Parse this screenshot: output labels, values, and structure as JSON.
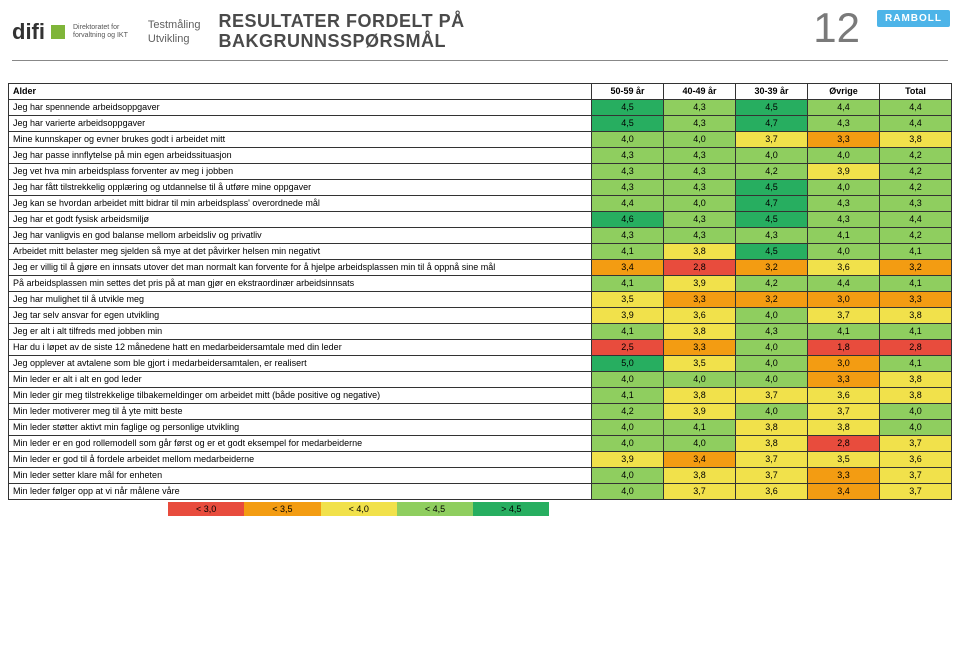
{
  "header": {
    "difi_text": "difi",
    "difi_sub1": "Direktoratet for",
    "difi_sub2": "forvaltning og IKT",
    "test1": "Testmåling",
    "test2": "Utvikling",
    "title1": "RESULTATER FORDELT PÅ",
    "title2": "BAKGRUNNSSPØRSMÅL",
    "pagenum": "12",
    "ramboll": "RAMBOLL"
  },
  "columns": [
    "Alder",
    "50-59 år",
    "40-49 år",
    "30-39 år",
    "Øvrige",
    "Total"
  ],
  "colors": {
    "red": "#e84c3d",
    "orange": "#f39c12",
    "yellow": "#f1e14b",
    "lightgreen": "#8fce5f",
    "green": "#27ae60"
  },
  "rows": [
    {
      "label": "Jeg har spennende arbeidsoppgaver",
      "vals": [
        "4,5",
        "4,3",
        "4,5",
        "4,4",
        "4,4"
      ]
    },
    {
      "label": "Jeg har varierte arbeidsoppgaver",
      "vals": [
        "4,5",
        "4,3",
        "4,7",
        "4,3",
        "4,4"
      ]
    },
    {
      "label": "Mine kunnskaper og evner brukes godt i arbeidet mitt",
      "vals": [
        "4,0",
        "4,0",
        "3,7",
        "3,3",
        "3,8"
      ]
    },
    {
      "label": "Jeg har passe innflytelse på min egen arbeidssituasjon",
      "vals": [
        "4,3",
        "4,3",
        "4,0",
        "4,0",
        "4,2"
      ]
    },
    {
      "label": "Jeg vet hva min arbeidsplass forventer av meg i jobben",
      "vals": [
        "4,3",
        "4,3",
        "4,2",
        "3,9",
        "4,2"
      ]
    },
    {
      "label": "Jeg har fått tilstrekkelig opplæring og utdannelse til å utføre mine oppgaver",
      "vals": [
        "4,3",
        "4,3",
        "4,5",
        "4,0",
        "4,2"
      ]
    },
    {
      "label": "Jeg kan se hvordan arbeidet mitt bidrar til min arbeidsplass' overordnede mål",
      "vals": [
        "4,4",
        "4,0",
        "4,7",
        "4,3",
        "4,3"
      ]
    },
    {
      "label": "Jeg har et godt fysisk arbeidsmiljø",
      "vals": [
        "4,6",
        "4,3",
        "4,5",
        "4,3",
        "4,4"
      ]
    },
    {
      "label": "Jeg har vanligvis en god balanse mellom arbeidsliv og privatliv",
      "vals": [
        "4,3",
        "4,3",
        "4,3",
        "4,1",
        "4,2"
      ]
    },
    {
      "label": "Arbeidet mitt belaster meg sjelden så mye at det påvirker helsen min negativt",
      "vals": [
        "4,1",
        "3,8",
        "4,5",
        "4,0",
        "4,1"
      ]
    },
    {
      "label": "Jeg er villig til å gjøre en innsats utover det man normalt kan forvente for å hjelpe arbeidsplassen min til å oppnå sine mål",
      "vals": [
        "3,4",
        "2,8",
        "3,2",
        "3,6",
        "3,2"
      ]
    },
    {
      "label": "På arbeidsplassen min settes det pris på at man gjør en ekstraordinær arbeidsinnsats",
      "vals": [
        "4,1",
        "3,9",
        "4,2",
        "4,4",
        "4,1"
      ]
    },
    {
      "label": "Jeg har mulighet til å utvikle meg",
      "vals": [
        "3,5",
        "3,3",
        "3,2",
        "3,0",
        "3,3"
      ]
    },
    {
      "label": "Jeg tar selv ansvar for egen utvikling",
      "vals": [
        "3,9",
        "3,6",
        "4,0",
        "3,7",
        "3,8"
      ]
    },
    {
      "label": "Jeg er alt i alt tilfreds med jobben min",
      "vals": [
        "4,1",
        "3,8",
        "4,3",
        "4,1",
        "4,1"
      ]
    },
    {
      "label": "Har du i løpet av de siste 12 månedene hatt en medarbeidersamtale med din leder",
      "vals": [
        "2,5",
        "3,3",
        "4,0",
        "1,8",
        "2,8"
      ]
    },
    {
      "label": "Jeg opplever at avtalene som ble gjort i medarbeidersamtalen, er realisert",
      "vals": [
        "5,0",
        "3,5",
        "4,0",
        "3,0",
        "4,1"
      ]
    },
    {
      "label": "Min leder er alt i alt en god leder",
      "vals": [
        "4,0",
        "4,0",
        "4,0",
        "3,3",
        "3,8"
      ]
    },
    {
      "label": "Min leder gir meg tilstrekkelige tilbakemeldinger om arbeidet mitt (både positive og negative)",
      "vals": [
        "4,1",
        "3,8",
        "3,7",
        "3,6",
        "3,8"
      ]
    },
    {
      "label": "Min leder motiverer meg til å yte mitt beste",
      "vals": [
        "4,2",
        "3,9",
        "4,0",
        "3,7",
        "4,0"
      ]
    },
    {
      "label": "Min leder støtter aktivt min faglige og personlige utvikling",
      "vals": [
        "4,0",
        "4,1",
        "3,8",
        "3,8",
        "4,0"
      ]
    },
    {
      "label": "Min leder er en god rollemodell som går først og er et godt eksempel for medarbeiderne",
      "vals": [
        "4,0",
        "4,0",
        "3,8",
        "2,8",
        "3,7"
      ]
    },
    {
      "label": "Min leder er god til å fordele arbeidet mellom medarbeiderne",
      "vals": [
        "3,9",
        "3,4",
        "3,7",
        "3,5",
        "3,6"
      ]
    },
    {
      "label": "Min leder setter klare mål for enheten",
      "vals": [
        "4,0",
        "3,8",
        "3,7",
        "3,3",
        "3,7"
      ]
    },
    {
      "label": "Min leder følger opp at vi når målene våre",
      "vals": [
        "4,0",
        "3,7",
        "3,6",
        "3,4",
        "3,7"
      ]
    }
  ],
  "legend": [
    {
      "label": "< 3,0",
      "color": "#e84c3d"
    },
    {
      "label": "< 3,5",
      "color": "#f39c12"
    },
    {
      "label": "< 4,0",
      "color": "#f1e14b"
    },
    {
      "label": "< 4,5",
      "color": "#8fce5f"
    },
    {
      "label": "> 4,5",
      "color": "#27ae60"
    }
  ]
}
